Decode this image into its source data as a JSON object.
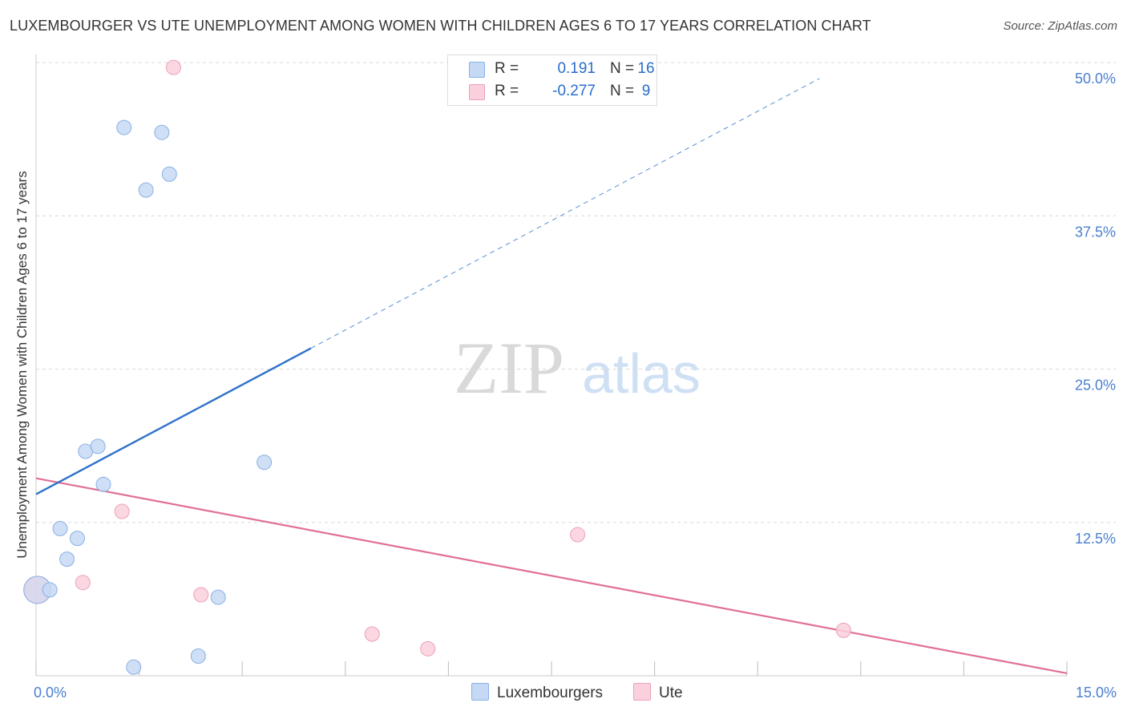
{
  "header": {
    "title": "LUXEMBOURGER VS UTE UNEMPLOYMENT AMONG WOMEN WITH CHILDREN AGES 6 TO 17 YEARS CORRELATION CHART",
    "source": "Source: ZipAtlas.com"
  },
  "legend": {
    "rows": [
      {
        "r_label": "R =",
        "r_value": "0.191",
        "n_label": "N =",
        "n_value": "16"
      },
      {
        "r_label": "R =",
        "r_value": "-0.277",
        "n_label": "N =",
        "n_value": "9"
      }
    ]
  },
  "bottom_legend": {
    "series_a": "Luxembourgers",
    "series_b": "Ute"
  },
  "watermark": {
    "zip": "ZIP",
    "atlas": "atlas"
  },
  "colors": {
    "lux_fill": "#c5d9f5",
    "lux_stroke": "#8ab0e6",
    "lux_line": "#2f73c9",
    "ute_fill": "#f9d0dc",
    "ute_stroke": "#eea0b8",
    "ute_line": "#e06f97",
    "axis_text": "#4a7fd0",
    "grid": "#d8d8d8"
  },
  "chart_data": {
    "type": "scatter",
    "title": "LUXEMBOURGER VS UTE UNEMPLOYMENT AMONG WOMEN WITH CHILDREN AGES 6 TO 17 YEARS CORRELATION CHART",
    "xlabel": "",
    "ylabel": "Unemployment Among Women with Children Ages 6 to 17 years",
    "xlim": [
      0,
      15
    ],
    "ylim": [
      0,
      50
    ],
    "x_tick_labels": [
      {
        "value": 0,
        "label": "0.0%"
      },
      {
        "value": 15,
        "label": "15.0%"
      }
    ],
    "y_tick_labels": [
      {
        "value": 12.5,
        "label": "12.5%"
      },
      {
        "value": 25,
        "label": "25.0%"
      },
      {
        "value": 37.5,
        "label": "37.5%"
      },
      {
        "value": 50,
        "label": "50.0%"
      }
    ],
    "series": [
      {
        "name": "Luxembourgers",
        "points": [
          {
            "x": 0.02,
            "y": 7.0,
            "size": "large"
          },
          {
            "x": 0.2,
            "y": 7.0
          },
          {
            "x": 0.35,
            "y": 12.0
          },
          {
            "x": 0.45,
            "y": 9.5
          },
          {
            "x": 0.6,
            "y": 11.2
          },
          {
            "x": 0.72,
            "y": 18.3
          },
          {
            "x": 0.9,
            "y": 18.7
          },
          {
            "x": 0.98,
            "y": 15.6
          },
          {
            "x": 1.28,
            "y": 44.7
          },
          {
            "x": 1.42,
            "y": 0.7
          },
          {
            "x": 1.6,
            "y": 39.6
          },
          {
            "x": 1.83,
            "y": 44.3
          },
          {
            "x": 1.94,
            "y": 40.9
          },
          {
            "x": 2.36,
            "y": 1.6
          },
          {
            "x": 2.65,
            "y": 6.4
          },
          {
            "x": 3.32,
            "y": 17.4
          }
        ],
        "trend": {
          "x": [
            0.0,
            4.0
          ],
          "y": [
            14.8,
            26.7
          ],
          "dashed_to": {
            "x": 11.4,
            "y": 48.7
          }
        }
      },
      {
        "name": "Ute",
        "points": [
          {
            "x": 0.02,
            "y": 7.0,
            "size": "large"
          },
          {
            "x": 0.68,
            "y": 7.6
          },
          {
            "x": 1.25,
            "y": 13.4
          },
          {
            "x": 2.4,
            "y": 6.6
          },
          {
            "x": 2.0,
            "y": 49.6
          },
          {
            "x": 4.89,
            "y": 3.4
          },
          {
            "x": 5.7,
            "y": 2.2
          },
          {
            "x": 7.88,
            "y": 11.5
          },
          {
            "x": 11.75,
            "y": 3.7
          }
        ],
        "trend": {
          "x": [
            0.0,
            15.0
          ],
          "y": [
            16.1,
            0.2
          ]
        }
      }
    ]
  }
}
